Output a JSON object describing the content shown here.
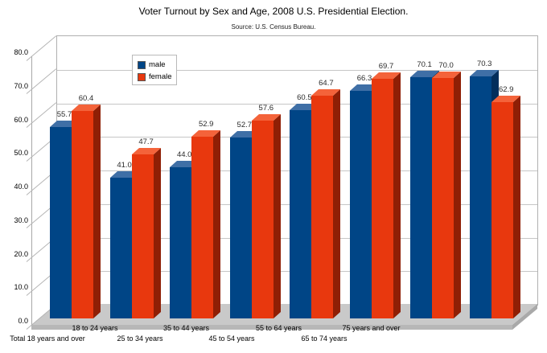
{
  "title": "Voter Turnout by Sex and Age, 2008 U.S. Presidential Election.",
  "subtitle": "Source: U.S. Census Bureau.",
  "legend": {
    "items": [
      {
        "label": "male",
        "color": "#004586"
      },
      {
        "label": "female",
        "color": "#E8380E"
      }
    ]
  },
  "colors": {
    "male_front": "#004586",
    "male_top": "#3F6FA6",
    "male_side": "#032E5C",
    "female_front": "#E8380E",
    "female_top": "#F4633A",
    "female_side": "#8F1F05",
    "floor": "#c9c9c9",
    "gridline": "#c6c6c6"
  },
  "chart_data": {
    "type": "bar",
    "title": "Voter Turnout by Sex and Age, 2008 U.S. Presidential Election.",
    "subtitle": "Source: U.S. Census Bureau.",
    "style": "3d-bars",
    "grid": true,
    "legend_position": "top-left-inside",
    "categories": [
      "Total 18 years and over",
      "18 to 24 years",
      "25 to 34 years",
      "35 to 44 years",
      "45 to 54 years",
      "55 to 64 years",
      "65 to 74 years",
      "75 years and over"
    ],
    "series": [
      {
        "name": "male",
        "color": "#004586",
        "values": [
          55.7,
          41.0,
          44.0,
          52.7,
          60.5,
          66.3,
          70.1,
          70.3
        ]
      },
      {
        "name": "female",
        "color": "#FF420E",
        "values": [
          60.4,
          47.7,
          52.9,
          57.6,
          64.7,
          69.7,
          70.0,
          62.9
        ]
      }
    ],
    "ylim": [
      0,
      80
    ],
    "ytick_step": 10,
    "ytick_labels": [
      "0.0",
      "10.0",
      "20.0",
      "30.0",
      "40.0",
      "50.0",
      "60.0",
      "70.0",
      "80.0"
    ],
    "xlabel": "",
    "ylabel": ""
  }
}
